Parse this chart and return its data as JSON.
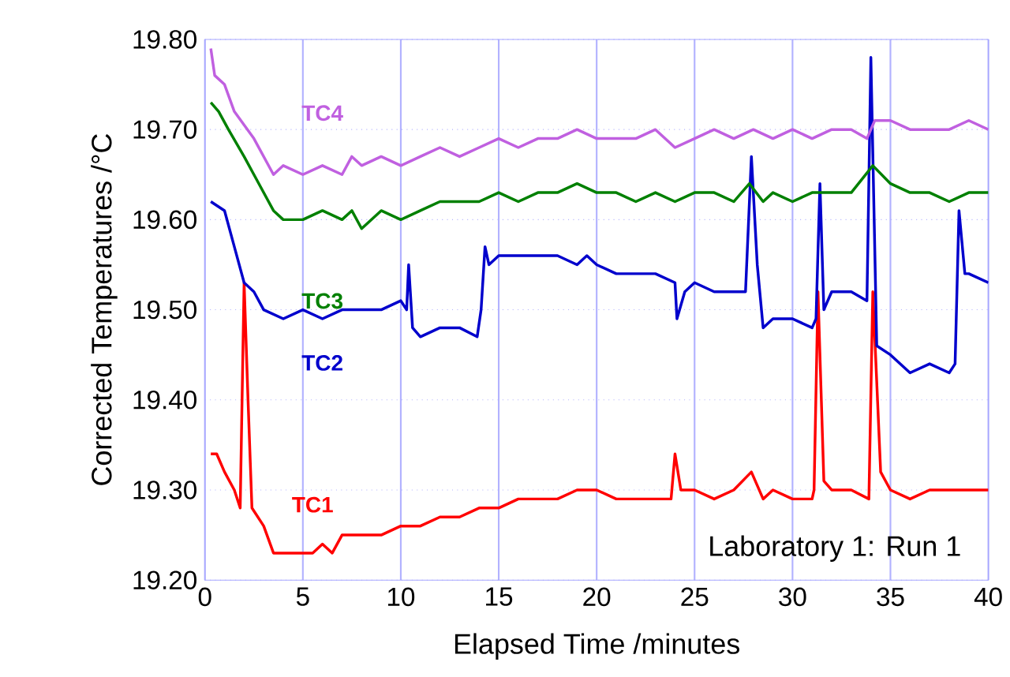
{
  "chart_data": {
    "type": "line",
    "xlabel": "Elapsed Time /minutes",
    "ylabel": "Corrected Temperatures /°C",
    "annotations": [
      "Laboratory 1: Run 1"
    ],
    "xlim": [
      0,
      40
    ],
    "ylim": [
      19.2,
      19.8
    ],
    "xticks": [
      0,
      5,
      10,
      15,
      20,
      25,
      30,
      35,
      40
    ],
    "yticks": [
      {
        "value": 19.2,
        "label": "19.20"
      },
      {
        "value": 19.3,
        "label": "19.30"
      },
      {
        "value": 19.4,
        "label": "19.40"
      },
      {
        "value": 19.5,
        "label": "19.50"
      },
      {
        "value": 19.6,
        "label": "19.60"
      },
      {
        "value": 19.7,
        "label": "19.70"
      },
      {
        "value": 19.8,
        "label": "19.80"
      }
    ],
    "grid": true,
    "series": [
      {
        "name": "TC1",
        "color": "#ff0000",
        "x": [
          0.3,
          0.6,
          1,
          1.5,
          1.8,
          2.0,
          2.2,
          2.4,
          3,
          3.5,
          4,
          5,
          5.5,
          6,
          6.5,
          7,
          8,
          9,
          10,
          11,
          12,
          13,
          14,
          15,
          16,
          17,
          18,
          19,
          20,
          21,
          22,
          23,
          23.8,
          24,
          24.3,
          25,
          26,
          27,
          27.9,
          28.5,
          29,
          30,
          31,
          31.1,
          31.3,
          31.6,
          32,
          33,
          33.9,
          34.1,
          34.5,
          35,
          36,
          37,
          38,
          39,
          40
        ],
        "values": [
          19.34,
          19.34,
          19.32,
          19.3,
          19.28,
          19.53,
          19.4,
          19.28,
          19.26,
          19.23,
          19.23,
          19.23,
          19.23,
          19.24,
          19.23,
          19.25,
          19.25,
          19.25,
          19.26,
          19.26,
          19.27,
          19.27,
          19.28,
          19.28,
          19.29,
          19.29,
          19.29,
          19.3,
          19.3,
          19.29,
          19.29,
          19.29,
          19.29,
          19.34,
          19.3,
          19.3,
          19.29,
          19.3,
          19.32,
          19.29,
          19.3,
          19.29,
          19.29,
          19.3,
          19.52,
          19.31,
          19.3,
          19.3,
          19.29,
          19.52,
          19.32,
          19.3,
          19.29,
          19.3,
          19.3,
          19.3,
          19.3
        ]
      },
      {
        "name": "TC2",
        "color": "#0000cc",
        "x": [
          0.3,
          1,
          1.5,
          2,
          2.5,
          3,
          4,
          5,
          6,
          7,
          8,
          9,
          10,
          10.3,
          10.4,
          10.6,
          11,
          12,
          13,
          13.9,
          14.1,
          14.3,
          14.5,
          15,
          16,
          17,
          18,
          19,
          19.5,
          20,
          21,
          22,
          23,
          24,
          24.1,
          24.5,
          25,
          26,
          27,
          27.6,
          27.9,
          28.2,
          28.5,
          29,
          30,
          31,
          31.2,
          31.4,
          31.6,
          32,
          33,
          33.8,
          34.0,
          34.3,
          35,
          36,
          37,
          38,
          38.3,
          38.5,
          38.8,
          39,
          40
        ],
        "values": [
          19.62,
          19.61,
          19.57,
          19.53,
          19.52,
          19.5,
          19.49,
          19.5,
          19.49,
          19.5,
          19.5,
          19.5,
          19.51,
          19.5,
          19.55,
          19.48,
          19.47,
          19.48,
          19.48,
          19.47,
          19.5,
          19.57,
          19.55,
          19.56,
          19.56,
          19.56,
          19.56,
          19.55,
          19.56,
          19.55,
          19.54,
          19.54,
          19.54,
          19.53,
          19.49,
          19.52,
          19.53,
          19.52,
          19.52,
          19.52,
          19.67,
          19.55,
          19.48,
          19.49,
          19.49,
          19.48,
          19.49,
          19.64,
          19.5,
          19.52,
          19.52,
          19.51,
          19.78,
          19.46,
          19.45,
          19.43,
          19.44,
          19.43,
          19.44,
          19.61,
          19.54,
          19.54,
          19.53
        ]
      },
      {
        "name": "TC3",
        "color": "#008000",
        "x": [
          0.3,
          0.7,
          1.2,
          2,
          2.5,
          3,
          3.5,
          4,
          5,
          6,
          7,
          7.5,
          8,
          9,
          10,
          11,
          12,
          13,
          14,
          15,
          16,
          17,
          18,
          19,
          20,
          21,
          22,
          23,
          24,
          25,
          26,
          27,
          27.8,
          28.5,
          29,
          30,
          31,
          32,
          33,
          34.1,
          35,
          36,
          37,
          38,
          39,
          40
        ],
        "values": [
          19.73,
          19.72,
          19.7,
          19.67,
          19.65,
          19.63,
          19.61,
          19.6,
          19.6,
          19.61,
          19.6,
          19.61,
          19.59,
          19.61,
          19.6,
          19.61,
          19.62,
          19.62,
          19.62,
          19.63,
          19.62,
          19.63,
          19.63,
          19.64,
          19.63,
          19.63,
          19.62,
          19.63,
          19.62,
          19.63,
          19.63,
          19.62,
          19.64,
          19.62,
          19.63,
          19.62,
          19.63,
          19.63,
          19.63,
          19.66,
          19.64,
          19.63,
          19.63,
          19.62,
          19.63,
          19.63
        ]
      },
      {
        "name": "TC4",
        "color": "#c060e0",
        "x": [
          0.3,
          0.5,
          1,
          1.5,
          2.5,
          3,
          3.5,
          4,
          5,
          6,
          7,
          7.5,
          8,
          9,
          10,
          11,
          12,
          13,
          14,
          15,
          16,
          17,
          18,
          19,
          20,
          21,
          22,
          23,
          24,
          25,
          26,
          27,
          28,
          29,
          30,
          31,
          32,
          33,
          33.8,
          34.2,
          35,
          36,
          37,
          38,
          39,
          40
        ],
        "values": [
          19.79,
          19.76,
          19.75,
          19.72,
          19.69,
          19.67,
          19.65,
          19.66,
          19.65,
          19.66,
          19.65,
          19.67,
          19.66,
          19.67,
          19.66,
          19.67,
          19.68,
          19.67,
          19.68,
          19.69,
          19.68,
          19.69,
          19.69,
          19.7,
          19.69,
          19.69,
          19.69,
          19.7,
          19.68,
          19.69,
          19.7,
          19.69,
          19.7,
          19.69,
          19.7,
          19.69,
          19.7,
          19.7,
          19.69,
          19.71,
          19.71,
          19.7,
          19.7,
          19.7,
          19.71,
          19.7
        ]
      }
    ]
  }
}
